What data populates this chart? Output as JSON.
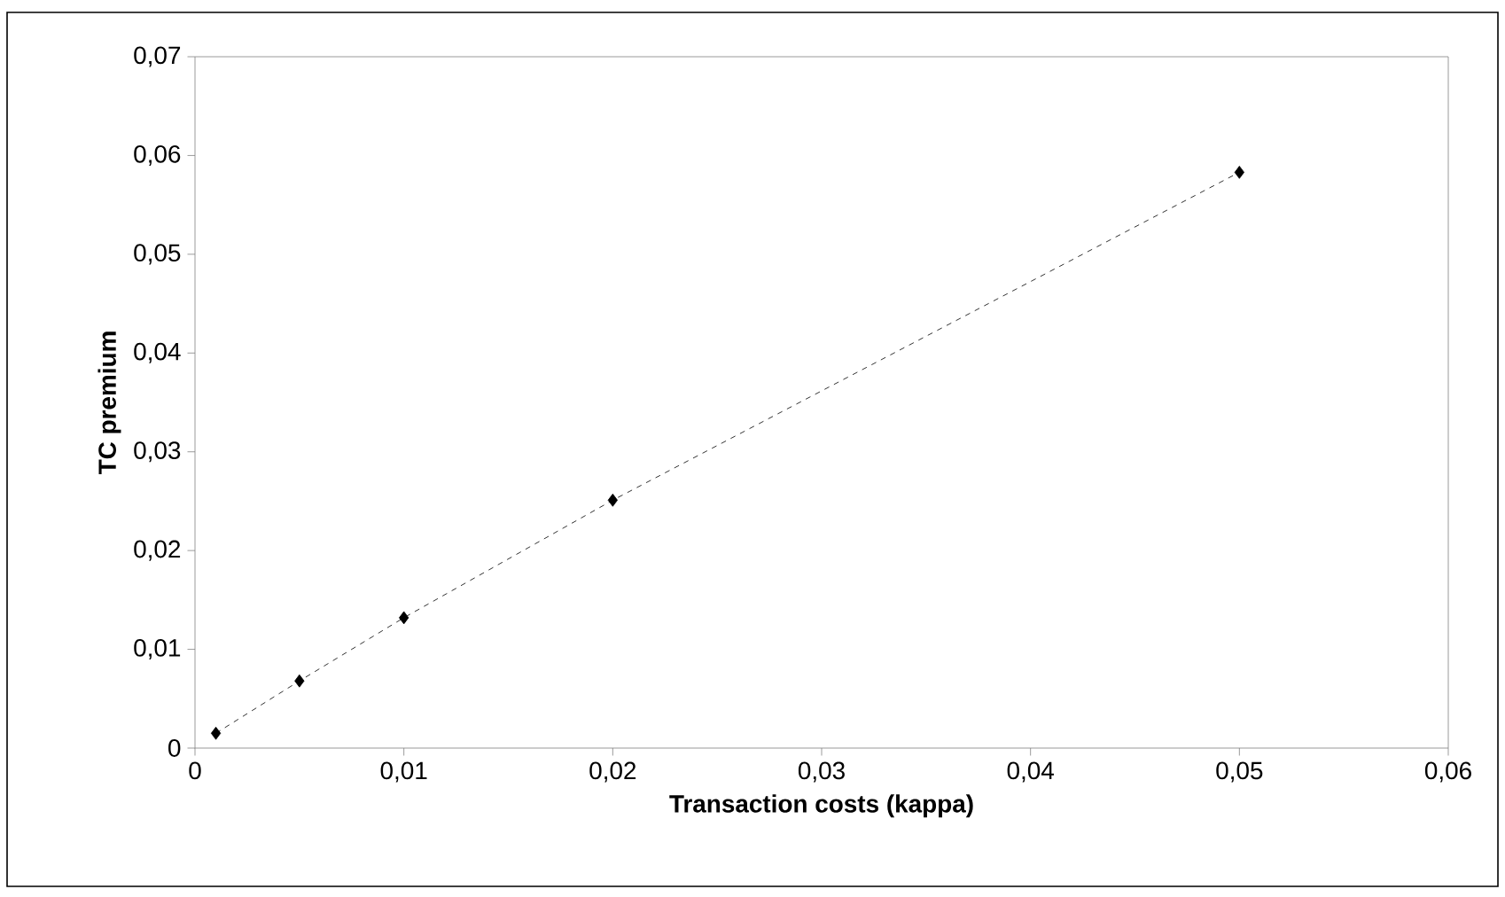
{
  "chart_data": {
    "type": "line",
    "xlabel": "Transaction costs (kappa)",
    "ylabel": "TC premium",
    "x": [
      0.001,
      0.005,
      0.01,
      0.02,
      0.05
    ],
    "values": [
      0.0015,
      0.0068,
      0.0132,
      0.0251,
      0.0583
    ],
    "color": "#000000",
    "marker": "diamond",
    "line_style": "dashed",
    "xlim": [
      0,
      0.06
    ],
    "ylim": [
      0,
      0.07
    ],
    "xticks": [
      0,
      {
        "value": 0.01,
        "label": "0,01"
      },
      {
        "value": 0.02,
        "label": "0,02"
      },
      {
        "value": 0.03,
        "label": "0,03"
      },
      {
        "value": 0.04,
        "label": "0,04"
      },
      {
        "value": 0.05,
        "label": "0,05"
      },
      {
        "value": 0.06,
        "label": "0,06"
      }
    ],
    "yticks": [
      0,
      {
        "value": 0.01,
        "label": "0,01"
      },
      {
        "value": 0.02,
        "label": "0,02"
      },
      {
        "value": 0.03,
        "label": "0,03"
      },
      {
        "value": 0.04,
        "label": "0,04"
      },
      {
        "value": 0.05,
        "label": "0,05"
      },
      {
        "value": 0.06,
        "label": "0,06"
      },
      {
        "value": 0.07,
        "label": "0,07"
      }
    ]
  }
}
